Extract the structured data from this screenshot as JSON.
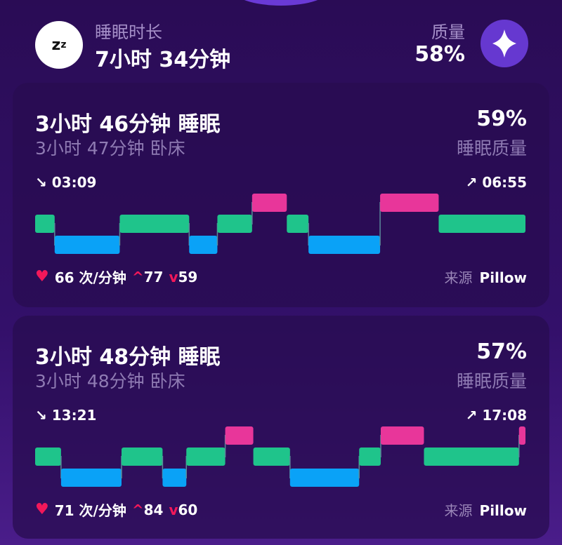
{
  "summary": {
    "duration_label": "睡眠时长",
    "duration_value": "7小时 34分钟",
    "quality_label": "质量",
    "quality_value": "58%",
    "sleep_icon": "zz-icon",
    "quality_icon": "diamond-icon"
  },
  "colors": {
    "light": "#1fc48b",
    "deep": "#0aa2f7",
    "awake": "#e8369a"
  },
  "sessions": [
    {
      "title": "3小时 46分钟 睡眠",
      "in_bed": "3小时 47分钟 卧床",
      "quality": "59%",
      "quality_label": "睡眠质量",
      "start": "03:09",
      "end": "06:55",
      "heart_rate": "66 次/分钟",
      "hr_max": "77",
      "hr_min": "59",
      "source_label": "来源",
      "source": "Pillow",
      "stages": [
        {
          "stage": "light",
          "minutes": 9
        },
        {
          "stage": "deep",
          "minutes": 30
        },
        {
          "stage": "light",
          "minutes": 32
        },
        {
          "stage": "deep",
          "minutes": 13
        },
        {
          "stage": "light",
          "minutes": 16
        },
        {
          "stage": "awake",
          "minutes": 16
        },
        {
          "stage": "light",
          "minutes": 10
        },
        {
          "stage": "deep",
          "minutes": 33
        },
        {
          "stage": "awake",
          "minutes": 27
        },
        {
          "stage": "light",
          "minutes": 40
        }
      ]
    },
    {
      "title": "3小时 48分钟 睡眠",
      "in_bed": "3小时 48分钟 卧床",
      "quality": "57%",
      "quality_label": "睡眠质量",
      "start": "13:21",
      "end": "17:08",
      "heart_rate": "71 次/分钟",
      "hr_max": "84",
      "hr_min": "60",
      "source_label": "来源",
      "source": "Pillow",
      "stages": [
        {
          "stage": "light",
          "minutes": 12
        },
        {
          "stage": "deep",
          "minutes": 28
        },
        {
          "stage": "light",
          "minutes": 19
        },
        {
          "stage": "deep",
          "minutes": 11
        },
        {
          "stage": "light",
          "minutes": 18
        },
        {
          "stage": "awake",
          "minutes": 13
        },
        {
          "stage": "light",
          "minutes": 17
        },
        {
          "stage": "deep",
          "minutes": 32
        },
        {
          "stage": "light",
          "minutes": 10
        },
        {
          "stage": "awake",
          "minutes": 20
        },
        {
          "stage": "light",
          "minutes": 44
        },
        {
          "stage": "awake",
          "minutes": 3
        }
      ]
    }
  ]
}
